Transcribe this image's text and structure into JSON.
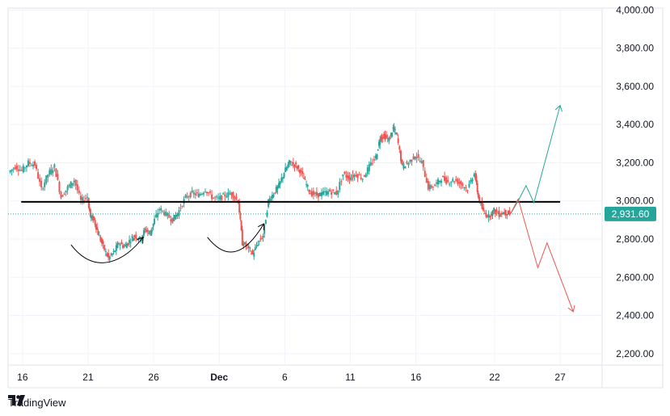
{
  "brand": {
    "name": "TradingView",
    "logo_icon": "tradingview-logo-icon"
  },
  "colors": {
    "up": "#26a69a",
    "down": "#ef5350",
    "grid": "#f0f3fa",
    "axis_text": "#131722",
    "last_price_bg": "#26a69a",
    "support": "#000000"
  },
  "chart_data": {
    "type": "candlestick",
    "title": "",
    "xlabel": "",
    "ylabel": "",
    "ylim": [
      2140,
      4010
    ],
    "y_ticks": [
      "4,000.00",
      "3,800.00",
      "3,600.00",
      "3,400.00",
      "3,200.00",
      "3,000.00",
      "2,800.00",
      "2,600.00",
      "2,400.00",
      "2,200.00"
    ],
    "y_tick_values": [
      4000,
      3800,
      3600,
      3400,
      3200,
      3000,
      2800,
      2600,
      2400,
      2200
    ],
    "x_ticks": [
      {
        "label": "16",
        "day": 0,
        "bold": false
      },
      {
        "label": "21",
        "day": 5,
        "bold": false
      },
      {
        "label": "26",
        "day": 10,
        "bold": false
      },
      {
        "label": "Dec",
        "day": 15,
        "bold": true
      },
      {
        "label": "6",
        "day": 20,
        "bold": false
      },
      {
        "label": "11",
        "day": 25,
        "bold": false
      },
      {
        "label": "16",
        "day": 30,
        "bold": false
      },
      {
        "label": "22",
        "day": 36,
        "bold": false
      },
      {
        "label": "27",
        "day": 41,
        "bold": false
      }
    ],
    "x_range_days": [
      -1.1,
      44.2
    ],
    "last_price": 2931.6,
    "last_price_label": "2,931.60",
    "support_level": 2995,
    "support_range_days": [
      -0.1,
      41.0
    ],
    "series": [
      {
        "day": -1.0,
        "close": 3150
      },
      {
        "day": -0.5,
        "close": 3180
      },
      {
        "day": 0.0,
        "close": 3160
      },
      {
        "day": 0.5,
        "close": 3200
      },
      {
        "day": 1.0,
        "close": 3190
      },
      {
        "day": 1.5,
        "close": 3060
      },
      {
        "day": 2.0,
        "close": 3140
      },
      {
        "day": 2.5,
        "close": 3180
      },
      {
        "day": 3.0,
        "close": 3020
      },
      {
        "day": 3.5,
        "close": 3070
      },
      {
        "day": 4.0,
        "close": 3110
      },
      {
        "day": 4.5,
        "close": 3000
      },
      {
        "day": 5.0,
        "close": 3020
      },
      {
        "day": 5.2,
        "close": 2920
      },
      {
        "day": 5.5,
        "close": 2900
      },
      {
        "day": 5.8,
        "close": 2830
      },
      {
        "day": 6.2,
        "close": 2760
      },
      {
        "day": 6.6,
        "close": 2700
      },
      {
        "day": 7.0,
        "close": 2730
      },
      {
        "day": 7.4,
        "close": 2780
      },
      {
        "day": 7.8,
        "close": 2760
      },
      {
        "day": 8.2,
        "close": 2790
      },
      {
        "day": 8.6,
        "close": 2820
      },
      {
        "day": 9.0,
        "close": 2800
      },
      {
        "day": 9.4,
        "close": 2850
      },
      {
        "day": 9.8,
        "close": 2830
      },
      {
        "day": 10.0,
        "close": 2880
      },
      {
        "day": 10.5,
        "close": 2960
      },
      {
        "day": 11.0,
        "close": 2930
      },
      {
        "day": 11.5,
        "close": 2900
      },
      {
        "day": 12.0,
        "close": 2950
      },
      {
        "day": 12.5,
        "close": 3020
      },
      {
        "day": 13.0,
        "close": 3040
      },
      {
        "day": 13.5,
        "close": 3030
      },
      {
        "day": 14.0,
        "close": 3060
      },
      {
        "day": 14.5,
        "close": 3020
      },
      {
        "day": 15.0,
        "close": 3010
      },
      {
        "day": 15.5,
        "close": 3030
      },
      {
        "day": 16.0,
        "close": 3040
      },
      {
        "day": 16.5,
        "close": 3000
      },
      {
        "day": 16.8,
        "close": 2780
      },
      {
        "day": 17.2,
        "close": 2760
      },
      {
        "day": 17.6,
        "close": 2720
      },
      {
        "day": 18.0,
        "close": 2780
      },
      {
        "day": 18.4,
        "close": 2820
      },
      {
        "day": 18.8,
        "close": 3000
      },
      {
        "day": 19.2,
        "close": 3040
      },
      {
        "day": 19.6,
        "close": 3080
      },
      {
        "day": 20.0,
        "close": 3150
      },
      {
        "day": 20.4,
        "close": 3200
      },
      {
        "day": 20.8,
        "close": 3190
      },
      {
        "day": 21.2,
        "close": 3160
      },
      {
        "day": 21.6,
        "close": 3100
      },
      {
        "day": 22.0,
        "close": 3040
      },
      {
        "day": 22.5,
        "close": 3030
      },
      {
        "day": 23.0,
        "close": 3040
      },
      {
        "day": 23.5,
        "close": 3050
      },
      {
        "day": 24.0,
        "close": 3040
      },
      {
        "day": 24.5,
        "close": 3140
      },
      {
        "day": 25.0,
        "close": 3120
      },
      {
        "day": 25.5,
        "close": 3140
      },
      {
        "day": 26.0,
        "close": 3120
      },
      {
        "day": 26.5,
        "close": 3180
      },
      {
        "day": 27.0,
        "close": 3230
      },
      {
        "day": 27.3,
        "close": 3330
      },
      {
        "day": 27.6,
        "close": 3340
      },
      {
        "day": 28.0,
        "close": 3320
      },
      {
        "day": 28.3,
        "close": 3380
      },
      {
        "day": 28.6,
        "close": 3340
      },
      {
        "day": 29.0,
        "close": 3180
      },
      {
        "day": 29.5,
        "close": 3200
      },
      {
        "day": 30.0,
        "close": 3240
      },
      {
        "day": 30.5,
        "close": 3200
      },
      {
        "day": 31.0,
        "close": 3070
      },
      {
        "day": 31.5,
        "close": 3080
      },
      {
        "day": 32.0,
        "close": 3120
      },
      {
        "day": 32.5,
        "close": 3100
      },
      {
        "day": 33.0,
        "close": 3110
      },
      {
        "day": 33.5,
        "close": 3090
      },
      {
        "day": 34.0,
        "close": 3060
      },
      {
        "day": 34.5,
        "close": 3150
      },
      {
        "day": 34.8,
        "close": 3020
      },
      {
        "day": 35.2,
        "close": 2940
      },
      {
        "day": 35.6,
        "close": 2920
      },
      {
        "day": 36.0,
        "close": 2950
      },
      {
        "day": 36.4,
        "close": 2930
      },
      {
        "day": 36.8,
        "close": 2940
      },
      {
        "day": 37.2,
        "close": 2931.6
      }
    ],
    "annotations": [
      {
        "name": "curve-arrow-left",
        "points": [
          [
            3.7,
            2770
          ],
          [
            5.6,
            2600
          ],
          [
            7.9,
            2690
          ],
          [
            9.2,
            2810
          ]
        ]
      },
      {
        "name": "curve-arrow-right",
        "points": [
          [
            14.1,
            2810
          ],
          [
            15.6,
            2680
          ],
          [
            17.0,
            2720
          ],
          [
            18.4,
            2880
          ]
        ]
      },
      {
        "name": "projection-up",
        "color": "#26a69a",
        "points": [
          [
            37.2,
            2930
          ],
          [
            37.8,
            3000
          ],
          [
            38.4,
            3080
          ],
          [
            39.0,
            2990
          ],
          [
            41.0,
            3500
          ]
        ]
      },
      {
        "name": "projection-down",
        "color": "#ef5350",
        "points": [
          [
            37.2,
            2930
          ],
          [
            37.8,
            3010
          ],
          [
            39.3,
            2650
          ],
          [
            40.0,
            2780
          ],
          [
            42.0,
            2420
          ]
        ]
      }
    ]
  }
}
